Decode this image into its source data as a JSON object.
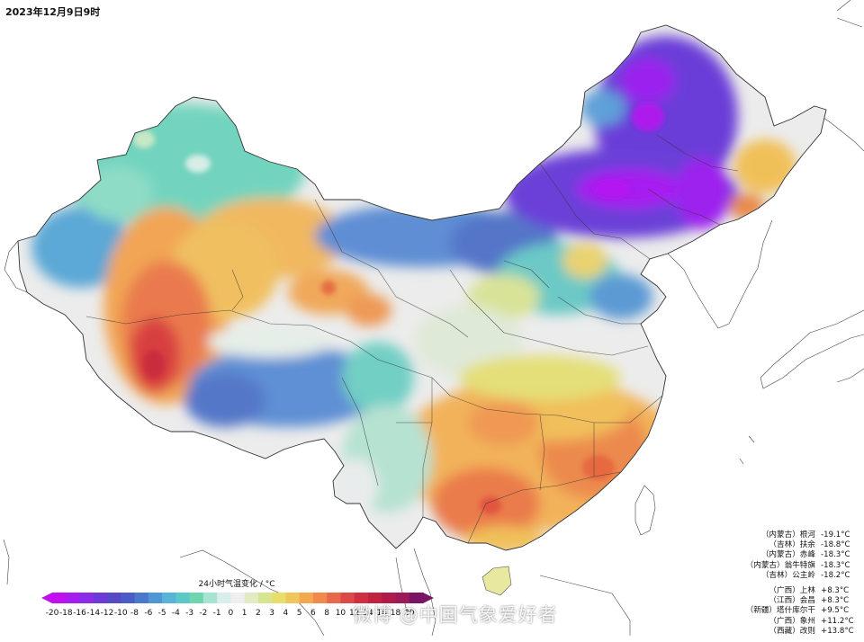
{
  "timestamp": "2023年12月9日9时",
  "legend": {
    "title": "24小时气温变化 / °C",
    "ticks": [
      "-20",
      "-18",
      "-16",
      "-14",
      "-12",
      "-10",
      "-8",
      "-6",
      "-5",
      "-4",
      "-3",
      "-2",
      "-1",
      "0",
      "1",
      "2",
      "3",
      "4",
      "5",
      "6",
      "8",
      "10",
      "12",
      "14",
      "16",
      "18",
      "20"
    ],
    "colors": [
      "#c20ff0",
      "#a51df0",
      "#8a2ce8",
      "#6d3ad8",
      "#5549c8",
      "#4a5cc6",
      "#4a79cc",
      "#4f96d4",
      "#58b3d8",
      "#5cc9c9",
      "#6dd6b0",
      "#a7e3d3",
      "#d8eeea",
      "#efefef",
      "#e2ecc4",
      "#d8e590",
      "#e8df6a",
      "#f0c65a",
      "#f3a74f",
      "#f1894a",
      "#e8694a",
      "#dc4a48",
      "#cf2f40",
      "#c12240",
      "#b01c4a",
      "#9c1a57",
      "#7a1565"
    ]
  },
  "stations": {
    "cold": [
      {
        "name": "（内蒙古）根河",
        "value": "-19.1°C"
      },
      {
        "name": "（吉林）扶余",
        "value": "-18.8°C"
      },
      {
        "name": "（内蒙古）赤峰",
        "value": "-18.3°C"
      },
      {
        "name": "（内蒙古）翁牛特旗",
        "value": "-18.3°C"
      },
      {
        "name": "（吉林）公主岭",
        "value": "-18.2°C"
      }
    ],
    "warm": [
      {
        "name": "（广西）上林",
        "value": "+8.3°C"
      },
      {
        "name": "（江西）会昌",
        "value": "+8.3°C"
      },
      {
        "name": "（新疆）塔什库尔干",
        "value": "+9.5°C"
      },
      {
        "name": "（广西）象州",
        "value": "+11.2°C"
      },
      {
        "name": "（西藏）改则",
        "value": "+13.8°C"
      }
    ]
  },
  "watermark": "微博 @中国气象爱好者"
}
